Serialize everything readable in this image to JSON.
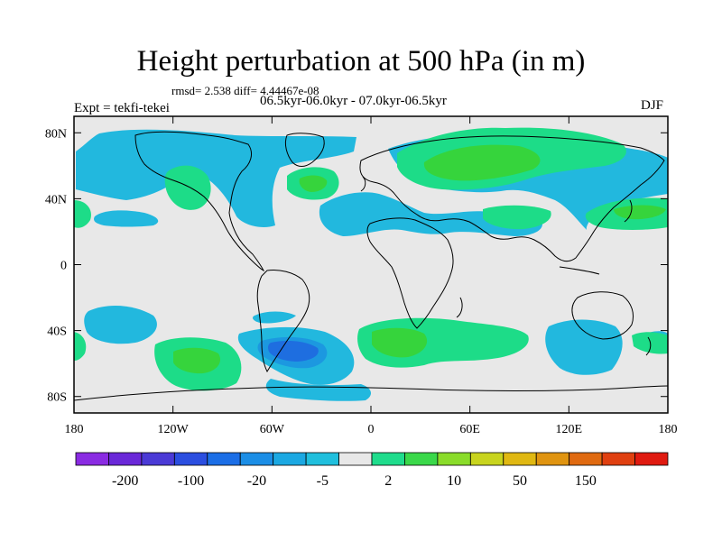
{
  "title": "Height perturbation at 500 hPa (in m)",
  "stats": {
    "text": "rmsd= 2.538 diff= 4.44467e-08"
  },
  "left_label": "Expt = tekfi-tekei",
  "center_label": "06.5kyr-06.0kyr - 07.0kyr-06.5kyr",
  "right_label": "DJF",
  "colors": {
    "background": "#e8e8e8",
    "coast": "#000000",
    "neg_light": "#22b8de",
    "neg_mid": "#1c98e0",
    "neg_strong": "#1e6ee0",
    "pos_light": "#1ddc88",
    "pos_mid": "#36d43c"
  },
  "map": {
    "lon_range": [
      -180,
      180
    ],
    "lat_range": [
      -90,
      90
    ],
    "lat_ticks": [
      {
        "value": 80,
        "label": "80N"
      },
      {
        "value": 40,
        "label": "40N"
      },
      {
        "value": 0,
        "label": "0"
      },
      {
        "value": -40,
        "label": "40S"
      },
      {
        "value": -80,
        "label": "80S"
      }
    ],
    "lon_ticks": [
      {
        "value": -180,
        "label": "180"
      },
      {
        "value": -120,
        "label": "120W"
      },
      {
        "value": -60,
        "label": "60W"
      },
      {
        "value": 0,
        "label": "0"
      },
      {
        "value": 60,
        "label": "60E"
      },
      {
        "value": 120,
        "label": "120E"
      },
      {
        "value": 180,
        "label": "180"
      }
    ]
  },
  "colorbar": {
    "colors": [
      "#8a2be2",
      "#6a28d8",
      "#4b3ad6",
      "#2b4ee0",
      "#1b6ee6",
      "#1b8ee6",
      "#1ba8e2",
      "#20bfdd",
      "#e8e8e8",
      "#1fdc8c",
      "#3ad84a",
      "#8adc2a",
      "#c8d41e",
      "#e0b812",
      "#e09410",
      "#e06a10",
      "#e04010",
      "#e01a10"
    ],
    "labels": [
      "-200",
      "-100",
      "-20",
      "-5",
      "2",
      "10",
      "50",
      "150"
    ]
  }
}
